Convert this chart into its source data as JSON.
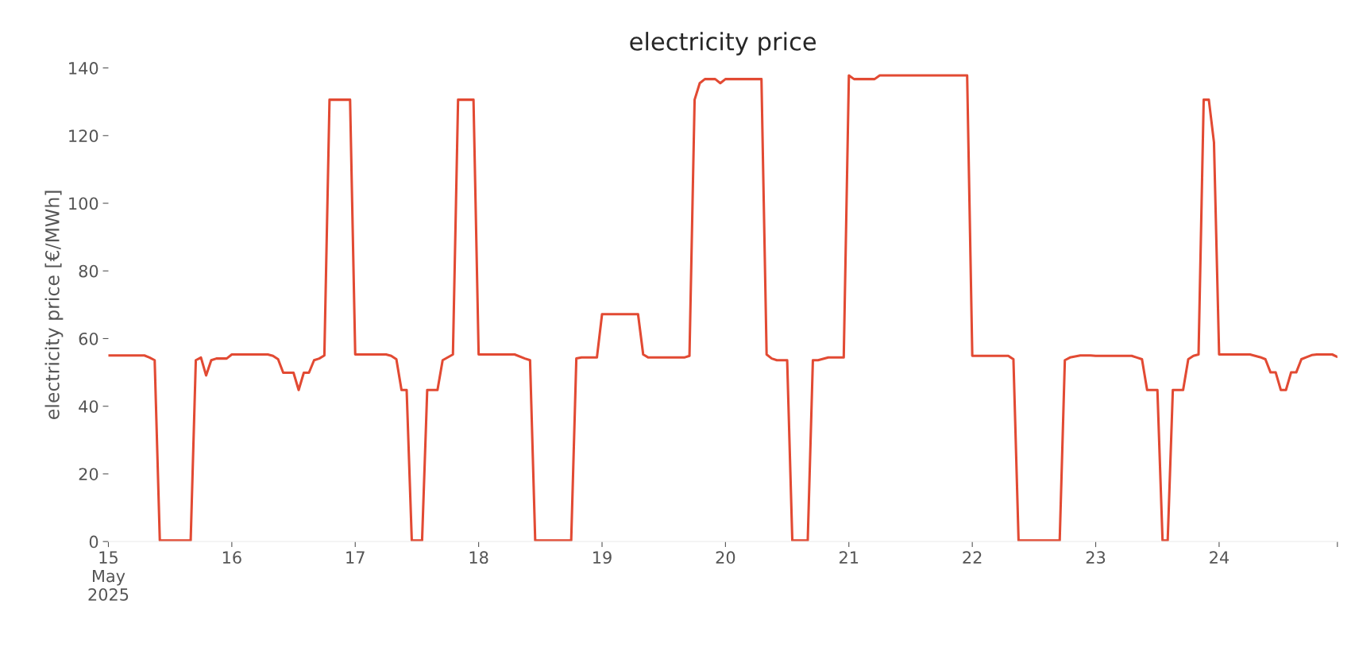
{
  "chart_data": {
    "type": "line",
    "title": "electricity price",
    "ylabel": "electricity price [€/MWh]",
    "x": [
      "2025-05-15T00:00",
      "2025-05-15T07:00",
      "2025-05-15T08:00",
      "2025-05-15T09:00",
      "2025-05-15T10:00",
      "2025-05-15T16:00",
      "2025-05-15T17:00",
      "2025-05-15T18:00",
      "2025-05-15T19:00",
      "2025-05-15T20:00",
      "2025-05-15T21:00",
      "2025-05-15T23:00",
      "2025-05-16T00:00",
      "2025-05-16T07:00",
      "2025-05-16T08:00",
      "2025-05-16T09:00",
      "2025-05-16T10:00",
      "2025-05-16T12:00",
      "2025-05-16T13:00",
      "2025-05-16T14:00",
      "2025-05-16T15:00",
      "2025-05-16T16:00",
      "2025-05-16T17:00",
      "2025-05-16T18:00",
      "2025-05-16T19:00",
      "2025-05-16T23:00",
      "2025-05-17T00:00",
      "2025-05-17T06:00",
      "2025-05-17T07:00",
      "2025-05-17T08:00",
      "2025-05-17T09:00",
      "2025-05-17T10:00",
      "2025-05-17T11:00",
      "2025-05-17T13:00",
      "2025-05-17T14:00",
      "2025-05-17T16:00",
      "2025-05-17T17:00",
      "2025-05-17T19:00",
      "2025-05-17T20:00",
      "2025-05-17T23:00",
      "2025-05-18T00:00",
      "2025-05-18T07:00",
      "2025-05-18T09:00",
      "2025-05-18T10:00",
      "2025-05-18T11:00",
      "2025-05-18T18:00",
      "2025-05-18T19:00",
      "2025-05-18T20:00",
      "2025-05-18T23:00",
      "2025-05-19T00:00",
      "2025-05-19T07:00",
      "2025-05-19T08:00",
      "2025-05-19T09:00",
      "2025-05-19T16:00",
      "2025-05-19T17:00",
      "2025-05-19T18:00",
      "2025-05-19T19:00",
      "2025-05-19T20:00",
      "2025-05-19T22:00",
      "2025-05-19T23:00",
      "2025-05-20T00:00",
      "2025-05-20T07:00",
      "2025-05-20T08:00",
      "2025-05-20T09:00",
      "2025-05-20T10:00",
      "2025-05-20T12:00",
      "2025-05-20T13:00",
      "2025-05-20T16:00",
      "2025-05-20T17:00",
      "2025-05-20T18:00",
      "2025-05-20T20:00",
      "2025-05-20T23:00",
      "2025-05-21T00:00",
      "2025-05-21T01:00",
      "2025-05-21T05:00",
      "2025-05-21T06:00",
      "2025-05-21T23:00",
      "2025-05-22T00:00",
      "2025-05-22T07:00",
      "2025-05-22T08:00",
      "2025-05-22T09:00",
      "2025-05-22T17:00",
      "2025-05-22T18:00",
      "2025-05-22T19:00",
      "2025-05-22T21:00",
      "2025-05-22T23:00",
      "2025-05-23T00:00",
      "2025-05-23T07:00",
      "2025-05-23T08:00",
      "2025-05-23T09:00",
      "2025-05-23T10:00",
      "2025-05-23T12:00",
      "2025-05-23T13:00",
      "2025-05-23T14:00",
      "2025-05-23T15:00",
      "2025-05-23T17:00",
      "2025-05-23T18:00",
      "2025-05-23T19:00",
      "2025-05-23T20:00",
      "2025-05-23T21:00",
      "2025-05-23T22:00",
      "2025-05-23T23:00",
      "2025-05-24T00:00",
      "2025-05-24T06:00",
      "2025-05-24T08:00",
      "2025-05-24T09:00",
      "2025-05-24T10:00",
      "2025-05-24T11:00",
      "2025-05-24T12:00",
      "2025-05-24T13:00",
      "2025-05-24T14:00",
      "2025-05-24T15:00",
      "2025-05-24T16:00",
      "2025-05-24T17:00",
      "2025-05-24T18:00",
      "2025-05-24T19:00",
      "2025-05-24T22:00",
      "2025-05-24T23:00"
    ],
    "series": [
      {
        "color": "#e24a33",
        "values": [
          55,
          55,
          54.4,
          53.6,
          0.3,
          0.3,
          53.6,
          54.4,
          49.1,
          53.6,
          54.1,
          54.1,
          55.3,
          55.3,
          54.9,
          53.9,
          49.9,
          49.9,
          44.8,
          49.9,
          49.9,
          53.6,
          54.1,
          55.0,
          130.6,
          130.6,
          55.3,
          55.3,
          54.9,
          53.9,
          44.8,
          44.8,
          0.3,
          0.3,
          44.8,
          44.8,
          53.6,
          55.3,
          130.6,
          130.6,
          55.3,
          55.3,
          54.1,
          53.6,
          0.3,
          0.3,
          54.1,
          54.4,
          54.4,
          67.2,
          67.2,
          55.3,
          54.4,
          54.4,
          54.9,
          130.6,
          135.5,
          136.7,
          136.7,
          135.5,
          136.7,
          136.7,
          55.3,
          54.1,
          53.6,
          53.6,
          0.3,
          0.3,
          53.6,
          53.6,
          54.4,
          54.4,
          137.8,
          136.7,
          136.7,
          137.8,
          137.8,
          54.9,
          54.9,
          53.9,
          0.3,
          0.3,
          53.6,
          54.4,
          55.0,
          55.0,
          54.9,
          54.9,
          54.4,
          53.9,
          44.8,
          44.8,
          0.3,
          0.3,
          44.8,
          44.8,
          53.9,
          54.9,
          55.3,
          130.6,
          130.6,
          118,
          55.3,
          55.3,
          54.5,
          53.9,
          50.0,
          50.0,
          44.8,
          44.8,
          50.0,
          50.0,
          53.9,
          54.5,
          55.1,
          55.3,
          55.3,
          54.6
        ]
      }
    ],
    "xlim": [
      "2025-05-15T00:00",
      "2025-05-24T23:00"
    ],
    "xticks": [
      {
        "value": "2025-05-15",
        "label": "15\nMay\n2025"
      },
      {
        "value": "2025-05-16",
        "label": "16"
      },
      {
        "value": "2025-05-17",
        "label": "17"
      },
      {
        "value": "2025-05-18",
        "label": "18"
      },
      {
        "value": "2025-05-19",
        "label": "19"
      },
      {
        "value": "2025-05-20",
        "label": "20"
      },
      {
        "value": "2025-05-21",
        "label": "21"
      },
      {
        "value": "2025-05-22",
        "label": "22"
      },
      {
        "value": "2025-05-23",
        "label": "23"
      },
      {
        "value": "2025-05-24",
        "label": "24"
      },
      {
        "value": "2025-05-24T23:00",
        "label": null
      }
    ],
    "ylim": [
      0,
      140
    ],
    "yticks": [
      0,
      20,
      40,
      60,
      80,
      100,
      120,
      140
    ],
    "grid": false,
    "marker": "none",
    "line_style": "solid"
  }
}
